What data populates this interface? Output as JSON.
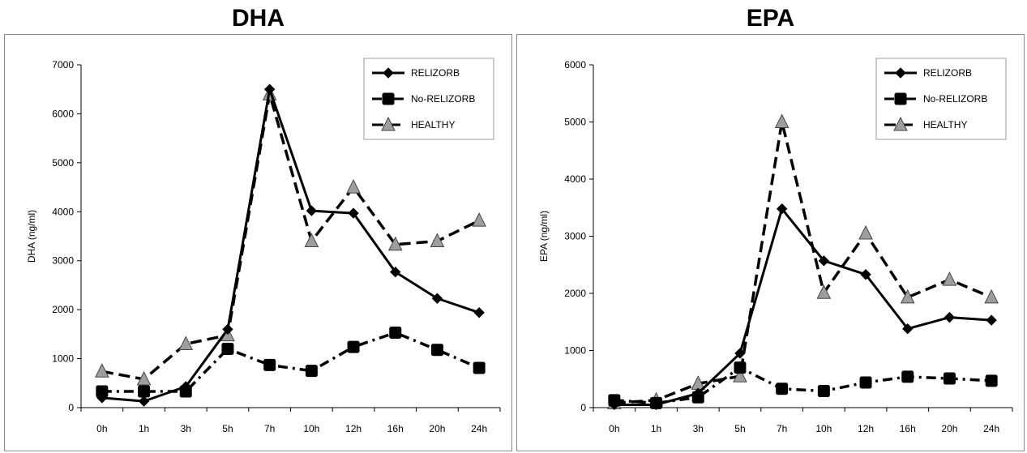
{
  "chart_data": [
    {
      "type": "line",
      "title": "DHA",
      "xlabel": "",
      "ylabel": "DHA (ng/ml)",
      "ylim": [
        0,
        7000
      ],
      "yticks": [
        0,
        1000,
        2000,
        3000,
        4000,
        5000,
        6000,
        7000
      ],
      "grid": false,
      "legend_placement": "top-right",
      "categories": [
        "0h",
        "1h",
        "3h",
        "5h",
        "7h",
        "10h",
        "12h",
        "16h",
        "20h",
        "24h"
      ],
      "series": [
        {
          "name": "RELIZORB",
          "style": "solid",
          "marker": "diamond",
          "values": [
            200,
            130,
            430,
            1600,
            6500,
            4020,
            3970,
            2770,
            2230,
            1940
          ]
        },
        {
          "name": "No-RELIZORB",
          "style": "dashdot",
          "marker": "square",
          "values": [
            330,
            330,
            330,
            1200,
            870,
            750,
            1240,
            1530,
            1180,
            810
          ]
        },
        {
          "name": "HEALTHY",
          "style": "dashed",
          "marker": "triangle",
          "values": [
            740,
            580,
            1300,
            1480,
            6400,
            3400,
            4500,
            3330,
            3400,
            3820
          ]
        }
      ]
    },
    {
      "type": "line",
      "title": "EPA",
      "xlabel": "",
      "ylabel": "EPA (ng/ml)",
      "ylim": [
        0,
        6000
      ],
      "yticks": [
        0,
        1000,
        2000,
        3000,
        4000,
        5000,
        6000
      ],
      "grid": false,
      "legend_placement": "top-right",
      "categories": [
        "0h",
        "1h",
        "3h",
        "5h",
        "7h",
        "10h",
        "12h",
        "16h",
        "20h",
        "24h"
      ],
      "series": [
        {
          "name": "RELIZORB",
          "style": "solid",
          "marker": "diamond",
          "values": [
            50,
            50,
            250,
            950,
            3480,
            2570,
            2330,
            1380,
            1580,
            1530
          ]
        },
        {
          "name": "No-RELIZORB",
          "style": "dashdot",
          "marker": "square",
          "values": [
            130,
            80,
            180,
            700,
            330,
            290,
            440,
            540,
            510,
            470
          ]
        },
        {
          "name": "HEALTHY",
          "style": "dashed",
          "marker": "triangle",
          "values": [
            80,
            130,
            420,
            550,
            5000,
            2010,
            3050,
            1930,
            2240,
            1930
          ]
        }
      ]
    }
  ],
  "colors": {
    "relizorb": "#000000",
    "no_relizorb": "#000000",
    "healthy": "#000000",
    "healthy_marker_fill": "#9e9e9e",
    "frame": "#8a8a8a"
  }
}
